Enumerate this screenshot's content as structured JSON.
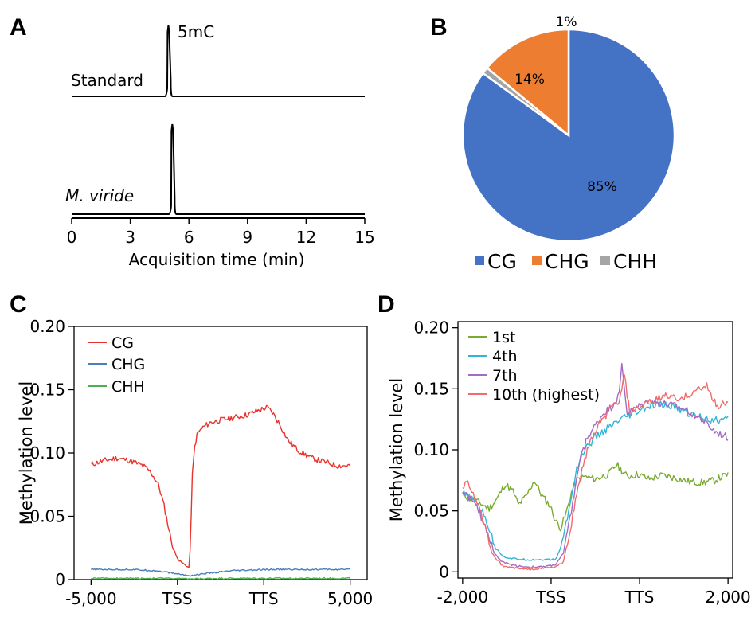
{
  "panels": {
    "a": "A",
    "b": "B",
    "c": "C",
    "d": "D"
  },
  "chart_data": [
    {
      "id": "A",
      "type": "line",
      "xlabel": "Acquisition time (min)",
      "xlim": [
        0,
        15
      ],
      "xticks": [
        "0",
        "3",
        "6",
        "9",
        "12",
        "15"
      ],
      "peak_label": "5mC",
      "series": [
        {
          "name": "Standard",
          "italic": false,
          "peak_time": 4.95,
          "baseline_before": 4.85,
          "baseline_after": 5.15
        },
        {
          "name": "M. viride",
          "italic": true,
          "peak_time": 5.15,
          "baseline_before": 5.05,
          "baseline_after": 5.35
        }
      ]
    },
    {
      "id": "B",
      "type": "pie",
      "slices": [
        {
          "name": "CG",
          "value": 85,
          "label": "85%",
          "color": "#4472C4"
        },
        {
          "name": "CHH",
          "value": 1,
          "label": "1%",
          "color": "#A5A5A5"
        },
        {
          "name": "CHG",
          "value": 14,
          "label": "14%",
          "color": "#ED7D31"
        }
      ],
      "legend": [
        "CG",
        "CHG",
        "CHH"
      ],
      "legend_placement": "bottom"
    },
    {
      "id": "C",
      "type": "line",
      "ylabel": "Methylation level",
      "ylim": [
        0,
        0.2
      ],
      "yticks": [
        "0",
        "0.05",
        "0.10",
        "0.15",
        "0.20"
      ],
      "xticks": [
        "-5,000",
        "TSS",
        "TTS",
        "5,000"
      ],
      "legend_placement": "top-left",
      "series": [
        {
          "name": "CG",
          "color": "#E8322B",
          "points": [
            [
              0,
              0.091
            ],
            [
              0.05,
              0.094
            ],
            [
              0.1,
              0.096
            ],
            [
              0.15,
              0.094
            ],
            [
              0.2,
              0.09
            ],
            [
              0.23,
              0.085
            ],
            [
              0.26,
              0.075
            ],
            [
              0.28,
              0.06
            ],
            [
              0.3,
              0.04
            ],
            [
              0.32,
              0.022
            ],
            [
              0.34,
              0.015
            ],
            [
              0.36,
              0.012
            ],
            [
              0.38,
              0.009
            ],
            [
              0.385,
              0.04
            ],
            [
              0.39,
              0.08
            ],
            [
              0.4,
              0.105
            ],
            [
              0.41,
              0.115
            ],
            [
              0.43,
              0.12
            ],
            [
              0.46,
              0.124
            ],
            [
              0.5,
              0.126
            ],
            [
              0.55,
              0.128
            ],
            [
              0.6,
              0.13
            ],
            [
              0.65,
              0.134
            ],
            [
              0.68,
              0.136
            ],
            [
              0.7,
              0.132
            ],
            [
              0.73,
              0.122
            ],
            [
              0.76,
              0.11
            ],
            [
              0.8,
              0.102
            ],
            [
              0.85,
              0.096
            ],
            [
              0.9,
              0.093
            ],
            [
              0.95,
              0.09
            ],
            [
              1.0,
              0.09
            ]
          ]
        },
        {
          "name": "CHG",
          "color": "#4A7EBB",
          "points": [
            [
              0,
              0.008
            ],
            [
              0.15,
              0.008
            ],
            [
              0.25,
              0.007
            ],
            [
              0.32,
              0.005
            ],
            [
              0.38,
              0.003
            ],
            [
              0.45,
              0.005
            ],
            [
              0.55,
              0.007
            ],
            [
              0.7,
              0.008
            ],
            [
              0.85,
              0.008
            ],
            [
              1.0,
              0.008
            ]
          ]
        },
        {
          "name": "CHH",
          "color": "#4CAF50",
          "points": [
            [
              0,
              0.001
            ],
            [
              0.3,
              0.001
            ],
            [
              0.38,
              0.0005
            ],
            [
              0.5,
              0.001
            ],
            [
              1.0,
              0.001
            ]
          ]
        }
      ]
    },
    {
      "id": "D",
      "type": "line",
      "ylabel": "Methylation level",
      "ylim": [
        -0.005,
        0.205
      ],
      "yticks": [
        "0",
        "0.05",
        "0.10",
        "0.15",
        "0.20"
      ],
      "xticks": [
        "-2,000",
        "TSS",
        "TTS",
        "2,000"
      ],
      "legend_placement": "top-left",
      "series": [
        {
          "name": "1st",
          "color": "#7AAA2E",
          "points": [
            [
              0,
              0.064
            ],
            [
              0.03,
              0.06
            ],
            [
              0.06,
              0.057
            ],
            [
              0.1,
              0.052
            ],
            [
              0.13,
              0.06
            ],
            [
              0.16,
              0.072
            ],
            [
              0.19,
              0.066
            ],
            [
              0.21,
              0.055
            ],
            [
              0.24,
              0.062
            ],
            [
              0.27,
              0.075
            ],
            [
              0.3,
              0.062
            ],
            [
              0.33,
              0.054
            ],
            [
              0.35,
              0.042
            ],
            [
              0.37,
              0.036
            ],
            [
              0.39,
              0.048
            ],
            [
              0.41,
              0.065
            ],
            [
              0.43,
              0.075
            ],
            [
              0.46,
              0.078
            ],
            [
              0.5,
              0.076
            ],
            [
              0.55,
              0.08
            ],
            [
              0.58,
              0.088
            ],
            [
              0.62,
              0.078
            ],
            [
              0.66,
              0.08
            ],
            [
              0.7,
              0.076
            ],
            [
              0.75,
              0.079
            ],
            [
              0.8,
              0.077
            ],
            [
              0.85,
              0.074
            ],
            [
              0.9,
              0.073
            ],
            [
              0.95,
              0.075
            ],
            [
              1.0,
              0.08
            ]
          ]
        },
        {
          "name": "4th",
          "color": "#33B5D6",
          "points": [
            [
              0,
              0.064
            ],
            [
              0.03,
              0.06
            ],
            [
              0.06,
              0.055
            ],
            [
              0.09,
              0.042
            ],
            [
              0.12,
              0.022
            ],
            [
              0.15,
              0.013
            ],
            [
              0.18,
              0.011
            ],
            [
              0.24,
              0.01
            ],
            [
              0.3,
              0.01
            ],
            [
              0.35,
              0.01
            ],
            [
              0.37,
              0.02
            ],
            [
              0.4,
              0.05
            ],
            [
              0.43,
              0.085
            ],
            [
              0.46,
              0.1
            ],
            [
              0.5,
              0.11
            ],
            [
              0.55,
              0.118
            ],
            [
              0.6,
              0.125
            ],
            [
              0.65,
              0.13
            ],
            [
              0.7,
              0.135
            ],
            [
              0.75,
              0.137
            ],
            [
              0.8,
              0.135
            ],
            [
              0.85,
              0.13
            ],
            [
              0.9,
              0.127
            ],
            [
              0.95,
              0.124
            ],
            [
              1.0,
              0.125
            ]
          ]
        },
        {
          "name": "7th",
          "color": "#A56BC4",
          "points": [
            [
              0,
              0.066
            ],
            [
              0.03,
              0.06
            ],
            [
              0.06,
              0.05
            ],
            [
              0.09,
              0.035
            ],
            [
              0.12,
              0.015
            ],
            [
              0.15,
              0.008
            ],
            [
              0.2,
              0.005
            ],
            [
              0.25,
              0.004
            ],
            [
              0.3,
              0.004
            ],
            [
              0.35,
              0.006
            ],
            [
              0.38,
              0.015
            ],
            [
              0.41,
              0.05
            ],
            [
              0.44,
              0.09
            ],
            [
              0.47,
              0.11
            ],
            [
              0.5,
              0.12
            ],
            [
              0.53,
              0.13
            ],
            [
              0.56,
              0.135
            ],
            [
              0.59,
              0.145
            ],
            [
              0.6,
              0.17
            ],
            [
              0.62,
              0.13
            ],
            [
              0.66,
              0.135
            ],
            [
              0.7,
              0.14
            ],
            [
              0.75,
              0.138
            ],
            [
              0.8,
              0.136
            ],
            [
              0.85,
              0.132
            ],
            [
              0.9,
              0.125
            ],
            [
              0.95,
              0.115
            ],
            [
              1.0,
              0.11
            ]
          ]
        },
        {
          "name": "10th (highest)",
          "color": "#F06C6C",
          "points": [
            [
              0,
              0.07
            ],
            [
              0.02,
              0.074
            ],
            [
              0.05,
              0.06
            ],
            [
              0.08,
              0.04
            ],
            [
              0.11,
              0.015
            ],
            [
              0.15,
              0.005
            ],
            [
              0.2,
              0.003
            ],
            [
              0.25,
              0.002
            ],
            [
              0.3,
              0.003
            ],
            [
              0.35,
              0.004
            ],
            [
              0.38,
              0.008
            ],
            [
              0.41,
              0.04
            ],
            [
              0.44,
              0.075
            ],
            [
              0.47,
              0.1
            ],
            [
              0.5,
              0.115
            ],
            [
              0.53,
              0.125
            ],
            [
              0.56,
              0.135
            ],
            [
              0.59,
              0.14
            ],
            [
              0.61,
              0.16
            ],
            [
              0.63,
              0.13
            ],
            [
              0.67,
              0.135
            ],
            [
              0.72,
              0.14
            ],
            [
              0.77,
              0.145
            ],
            [
              0.82,
              0.14
            ],
            [
              0.87,
              0.148
            ],
            [
              0.92,
              0.152
            ],
            [
              0.96,
              0.135
            ],
            [
              1.0,
              0.14
            ]
          ]
        }
      ]
    }
  ]
}
